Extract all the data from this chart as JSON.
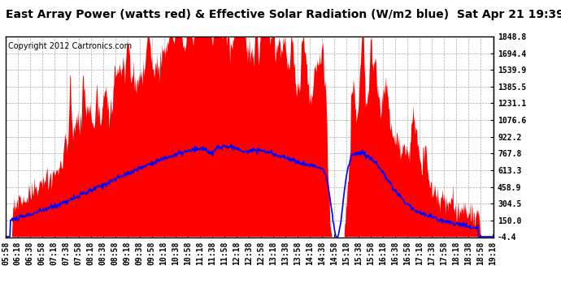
{
  "title": "East Array Power (watts red) & Effective Solar Radiation (W/m2 blue)  Sat Apr 21 19:39",
  "copyright": "Copyright 2012 Cartronics.com",
  "yticks": [
    1848.8,
    1694.4,
    1539.9,
    1385.5,
    1231.1,
    1076.6,
    922.2,
    767.8,
    613.3,
    458.9,
    304.5,
    150.0,
    -4.4
  ],
  "ymin": -4.4,
  "ymax": 1848.8,
  "bg_color": "#ffffff",
  "plot_bg_color": "#ffffff",
  "red_color": "#ff0000",
  "blue_color": "#0000ff",
  "grid_color": "#aaaaaa",
  "title_fontsize": 10,
  "copyright_fontsize": 7,
  "tick_fontsize": 7
}
